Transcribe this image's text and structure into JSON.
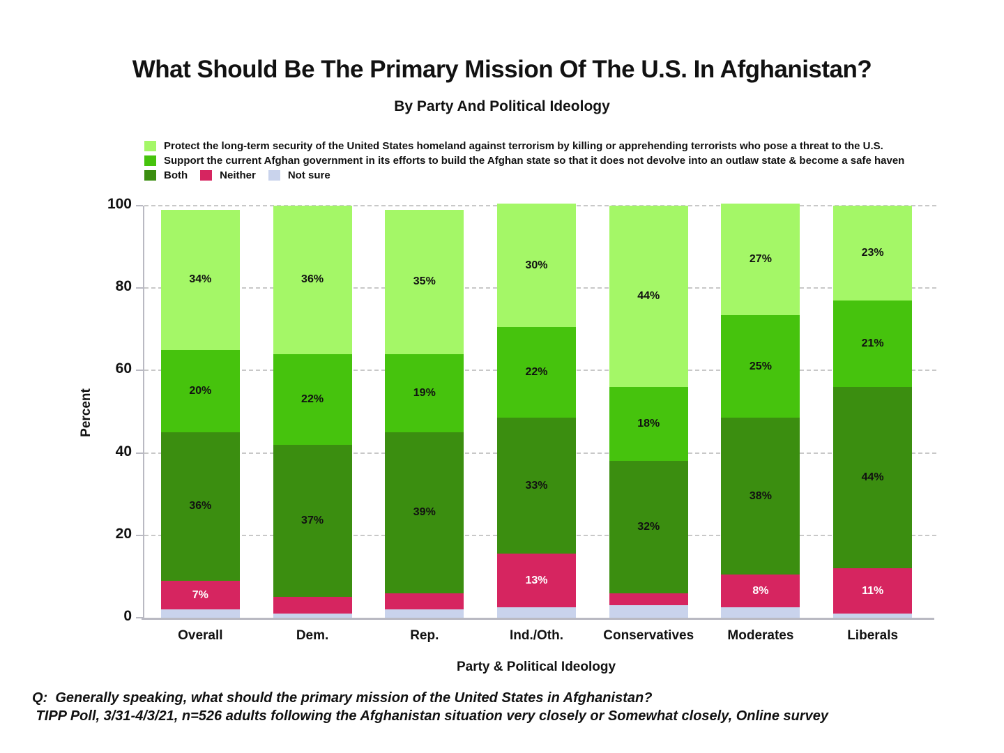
{
  "footer": {
    "question": "Q:  Generally speaking, what should the primary mission of the United States in Afghanistan?",
    "source": " TIPP Poll, 3/31-4/3/21, n=526 adults following the Afghanistan situation very closely or Somewhat closely, Online survey"
  },
  "colors": {
    "background": "#ffffff",
    "axis": "#b9b9c2",
    "grid": "#c8c8c8"
  },
  "chart_data": {
    "type": "bar",
    "variant": "stacked-percent",
    "title": "What Should Be The Primary Mission Of The U.S. In Afghanistan?",
    "subtitle": "By Party And Political Ideology",
    "xlabel": "Party & Political Ideology",
    "ylabel": "Percent",
    "ylim": [
      0,
      100
    ],
    "yticks": [
      0,
      20,
      40,
      60,
      80,
      100
    ],
    "grid": "horizontal-dashed",
    "legend_position": "top-left",
    "categories": [
      "Overall",
      "Dem.",
      "Rep.",
      "Ind./Oth.",
      "Conservatives",
      "Moderates",
      "Liberals"
    ],
    "series": [
      {
        "key": "protect",
        "name": "Protect the long-term security of the United States homeland against terrorism by killing or apprehending terrorists who pose a threat to the U.S.",
        "color": "#a4f767",
        "label_color": "#111111",
        "values": [
          34,
          36,
          35,
          30,
          44,
          27,
          23
        ],
        "labels": [
          "34%",
          "36%",
          "35%",
          "30%",
          "44%",
          "27%",
          "23%"
        ]
      },
      {
        "key": "support",
        "name": "Support the current Afghan government in its efforts to build the Afghan state so that it does not devolve into an outlaw state & become a safe haven",
        "color": "#46c30d",
        "label_color": "#111111",
        "values": [
          20,
          22,
          19,
          22,
          18,
          25,
          21
        ],
        "labels": [
          "20%",
          "22%",
          "19%",
          "22%",
          "18%",
          "25%",
          "21%"
        ]
      },
      {
        "key": "both",
        "name": "Both",
        "color": "#3b8e10",
        "label_color": "#111111",
        "values": [
          36,
          37,
          39,
          33,
          32,
          38,
          44
        ],
        "labels": [
          "36%",
          "37%",
          "39%",
          "33%",
          "32%",
          "38%",
          "44%"
        ]
      },
      {
        "key": "neither",
        "name": "Neither",
        "color": "#d62560",
        "label_color": "#ffffff",
        "values": [
          7,
          4,
          4,
          13,
          3,
          8,
          11
        ],
        "labels": [
          "7%",
          "",
          "",
          "13%",
          "",
          "8%",
          "11%"
        ]
      },
      {
        "key": "not-sure",
        "name": "Not sure",
        "color": "#c9d3ec",
        "label_color": "#111111",
        "values": [
          2,
          1,
          2,
          2.5,
          3,
          2.5,
          1
        ],
        "labels": [
          "",
          "",
          "",
          "",
          "",
          "",
          ""
        ]
      }
    ]
  }
}
